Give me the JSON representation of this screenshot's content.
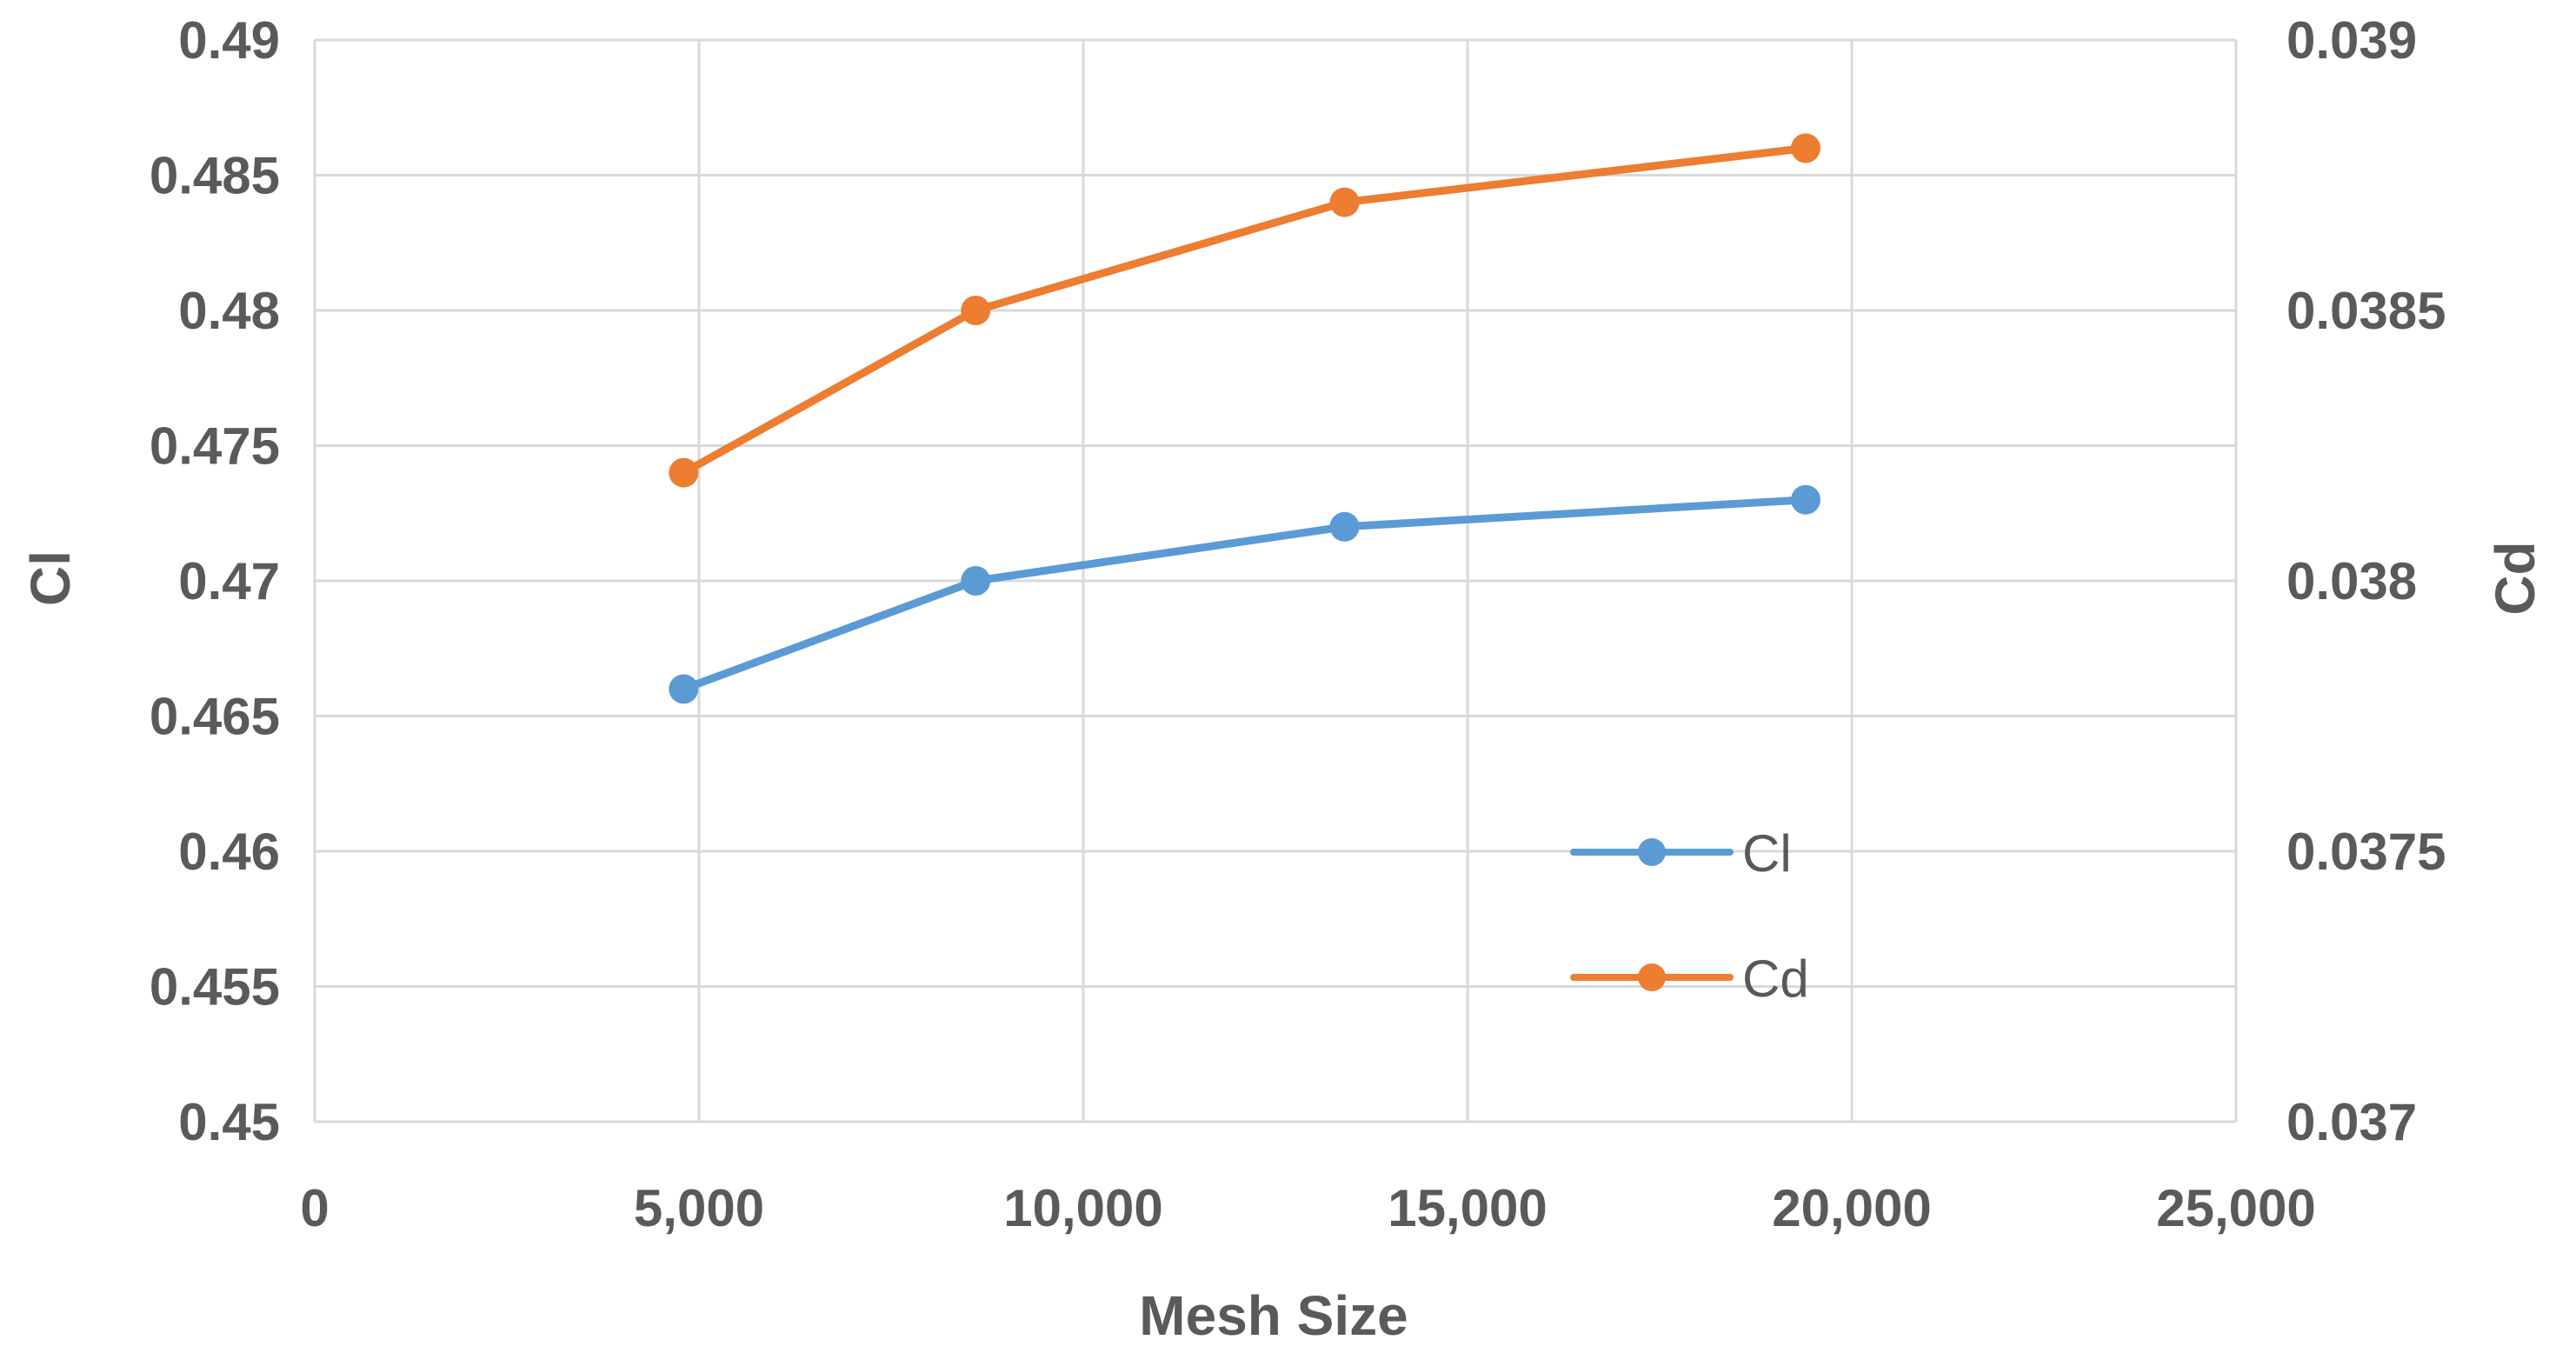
{
  "chart_data": {
    "type": "line",
    "xlabel": "Mesh Size",
    "ylabel": "Cl",
    "y2label": "Cd",
    "xlim": [
      0,
      25000
    ],
    "ylim": [
      0.45,
      0.49
    ],
    "y2lim": [
      0.037,
      0.039
    ],
    "x_ticks": [
      "0",
      "5,000",
      "10,000",
      "15,000",
      "20,000",
      "25,000"
    ],
    "x_tick_values": [
      0,
      5000,
      10000,
      15000,
      20000,
      25000
    ],
    "y_ticks": [
      "0.45",
      "0.455",
      "0.46",
      "0.465",
      "0.47",
      "0.475",
      "0.48",
      "0.485",
      "0.49"
    ],
    "y_tick_values": [
      0.45,
      0.455,
      0.46,
      0.465,
      0.47,
      0.475,
      0.48,
      0.485,
      0.49
    ],
    "y2_ticks": [
      "0.037",
      "0.0375",
      "0.038",
      "0.0385",
      "0.039"
    ],
    "y2_tick_values": [
      0.037,
      0.0375,
      0.038,
      0.0385,
      0.039
    ],
    "grid": true,
    "legend_position": "lower-right-inside",
    "series": [
      {
        "name": "Cl",
        "axis": "left",
        "color": "#5b9bd5",
        "x": [
          4800,
          8600,
          13400,
          19400
        ],
        "y": [
          0.466,
          0.47,
          0.472,
          0.473
        ]
      },
      {
        "name": "Cd",
        "axis": "right",
        "color": "#ed7d31",
        "x": [
          4800,
          8600,
          13400,
          19400
        ],
        "y": [
          0.0382,
          0.0385,
          0.0387,
          0.0388
        ]
      }
    ]
  }
}
